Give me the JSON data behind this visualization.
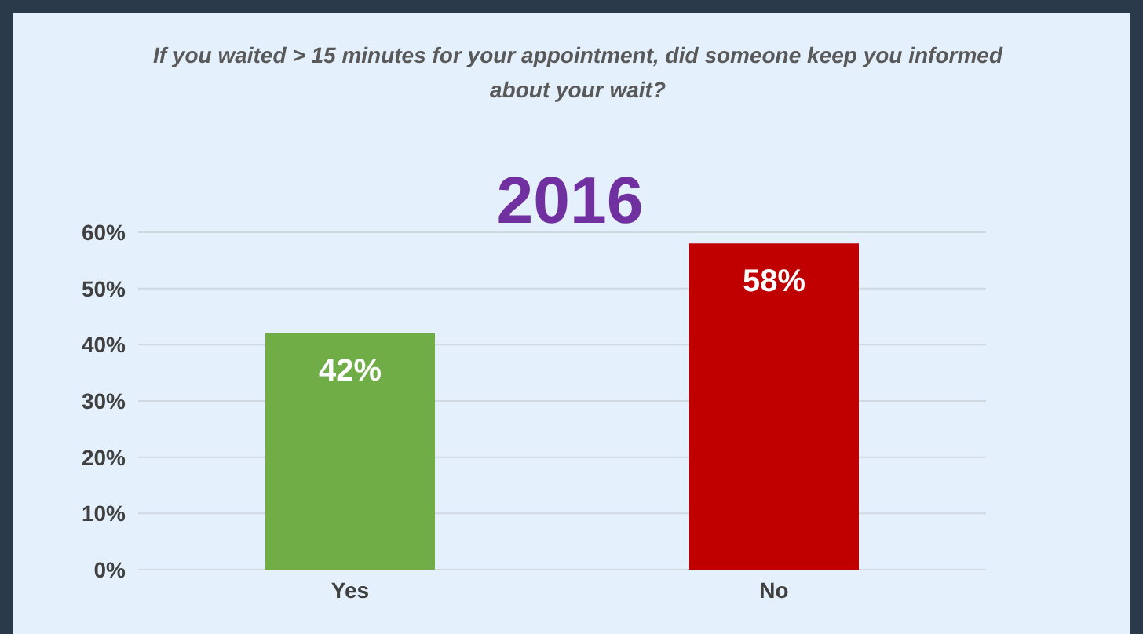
{
  "chart_data": {
    "type": "bar",
    "title": "If you waited > 15 minutes for your appointment, did someone keep you informed about your wait?",
    "subtitle": "2016",
    "categories": [
      "Yes",
      "No"
    ],
    "values": [
      42,
      58
    ],
    "colors": [
      "#70ad47",
      "#c00000"
    ],
    "value_labels": [
      "42%",
      "58%"
    ],
    "ylim": [
      0,
      60
    ],
    "yticks": [
      {
        "value": 0,
        "label": "0%"
      },
      {
        "value": 10,
        "label": "10%"
      },
      {
        "value": 20,
        "label": "20%"
      },
      {
        "value": 30,
        "label": "30%"
      },
      {
        "value": 40,
        "label": "40%"
      },
      {
        "value": 50,
        "label": "50%"
      },
      {
        "value": 60,
        "label": "60%"
      }
    ],
    "grid": "y"
  }
}
